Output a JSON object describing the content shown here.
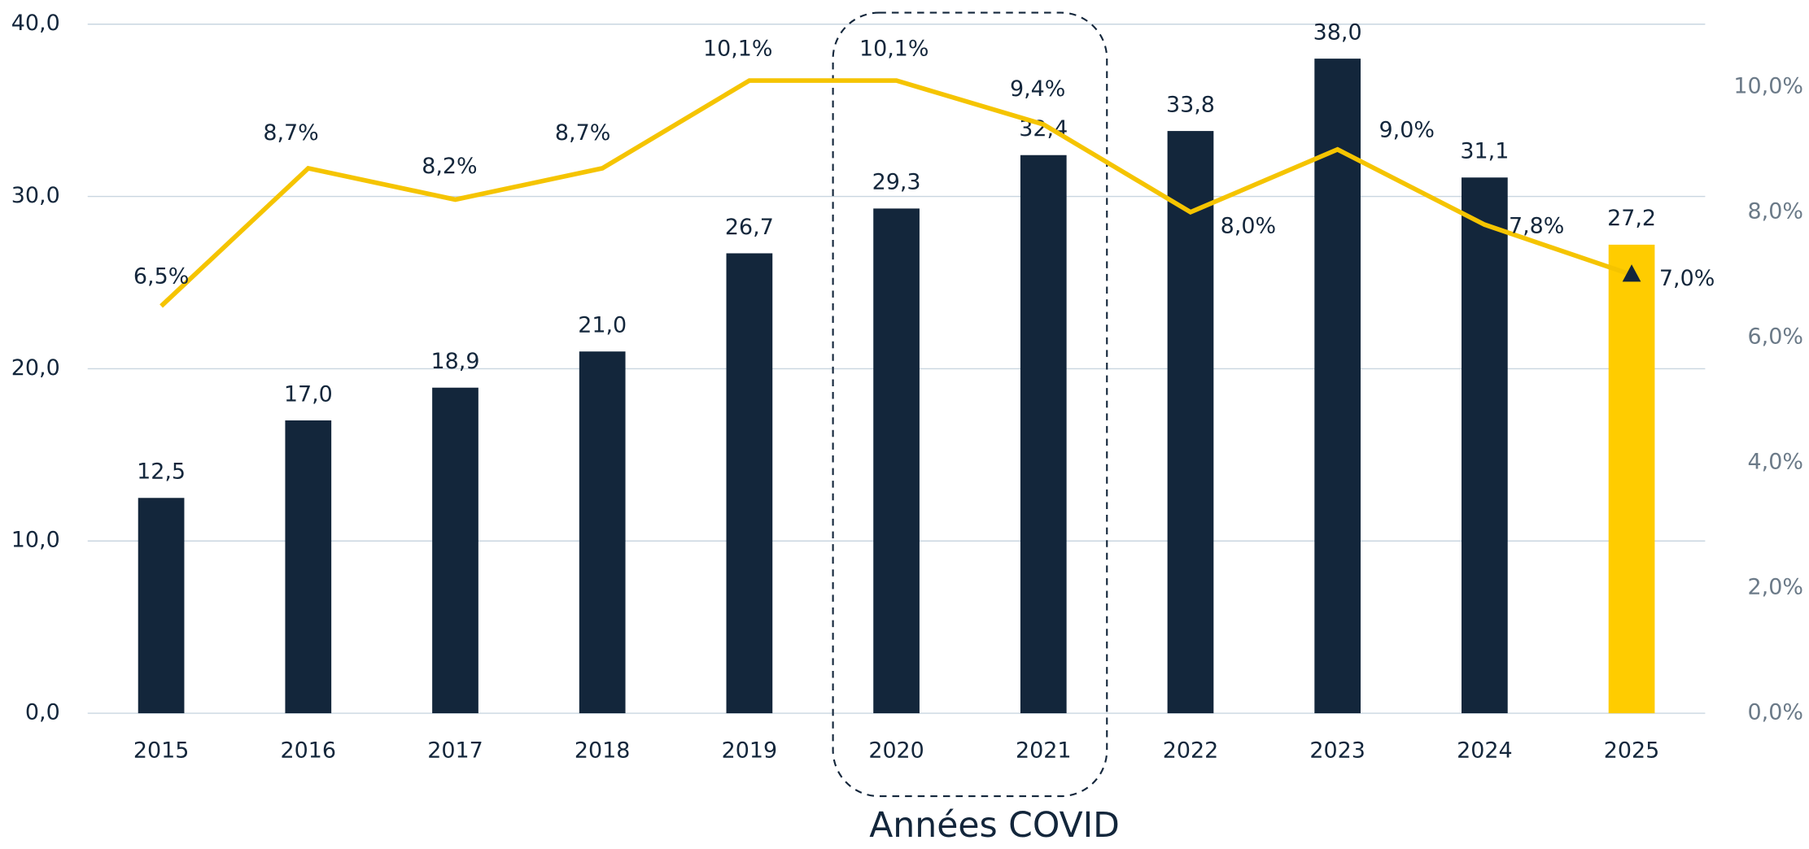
{
  "chart_data": {
    "type": "bar",
    "categories": [
      "2015",
      "2016",
      "2017",
      "2018",
      "2019",
      "2020",
      "2021",
      "2022",
      "2023",
      "2024",
      "2025"
    ],
    "series": [
      {
        "type": "bar",
        "color": "#13263b",
        "colors": [
          "#13263b",
          "#13263b",
          "#13263b",
          "#13263b",
          "#13263b",
          "#13263b",
          "#13263b",
          "#13263b",
          "#13263b",
          "#13263b",
          "#ffcc00"
        ],
        "values": [
          12.5,
          17.0,
          18.9,
          21.0,
          26.7,
          29.3,
          32.4,
          33.8,
          38.0,
          31.1,
          27.2
        ],
        "value_labels": [
          "12,5",
          "17,0",
          "18,9",
          "21,0",
          "26,7",
          "29,3",
          "32,4",
          "33,8",
          "38,0",
          "31,1",
          "27,2"
        ]
      },
      {
        "type": "line",
        "axis": "y2",
        "color": "#f5c400",
        "values": [
          6.5,
          8.7,
          8.2,
          8.7,
          10.1,
          10.1,
          9.4,
          8.0,
          9.0,
          7.8,
          7.0
        ],
        "value_labels": [
          "6,5%",
          "8,7%",
          "8,2%",
          "8,7%",
          "10,1%",
          "10,1%",
          "9,4%",
          "8,0%",
          "9,0%",
          "7,8%",
          "7,0%"
        ]
      }
    ],
    "ylim": [
      0,
      40
    ],
    "yticks": [
      {
        "value": 0,
        "label": "0,0"
      },
      {
        "value": 10,
        "label": "10,0"
      },
      {
        "value": 20,
        "label": "20,0"
      },
      {
        "value": 30,
        "label": "30,0"
      },
      {
        "value": 40,
        "label": "40,0"
      }
    ],
    "y2lim": [
      0,
      11
    ],
    "y2ticks": [
      {
        "value": 0,
        "label": "0,0%"
      },
      {
        "value": 2,
        "label": "2,0%"
      },
      {
        "value": 4,
        "label": "4,0%"
      },
      {
        "value": 6,
        "label": "6,0%"
      },
      {
        "value": 8,
        "label": "8,0%"
      },
      {
        "value": 10,
        "label": "10,0%"
      }
    ],
    "grid": true,
    "annotation": "Années COVID"
  }
}
